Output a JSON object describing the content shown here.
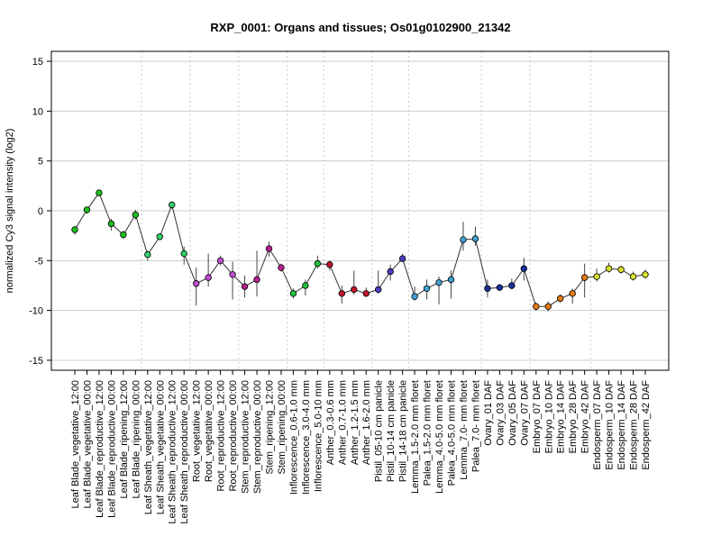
{
  "chart_data": {
    "type": "line",
    "title": "RXP_0001: Organs and tissues; Os01g0102900_21342",
    "xlabel": "",
    "ylabel": "normalized Cy3 signal intensity (log2)",
    "ylim": [
      -16,
      16
    ],
    "yticks": [
      -15,
      -10,
      -5,
      0,
      5,
      10,
      15
    ],
    "grid": true,
    "categories": [
      "Leaf Blade_vegetative_12:00",
      "Leaf Blade_vegetative_00:00",
      "Leaf Blade_reproductive_12:00",
      "Leaf Blade_reproductive_00:00",
      "Leaf Blade_ripening_12:00",
      "Leaf Blade_ripening_00:00",
      "Leaf Sheath_vegetative_12:00",
      "Leaf Sheath_vegetative_00:00",
      "Leaf Sheath_reproductive_12:00",
      "Leaf Sheath_reproductive_00:00",
      "Root_vegetative_12:00",
      "Root_vegetative_00:00",
      "Root_reproductive_12:00",
      "Root_reproductive_00:00",
      "Stem_reproductive_12:00",
      "Stem_reproductive_00:00",
      "Stem_ripening_12:00",
      "Stem_ripening_00:00",
      "Inflorescence_0.6-1.0 mm",
      "Inflorescence_3.0-4.0 mm",
      "Inflorescence_5.0-10 mm",
      "Anther_0.3-0.6 mm",
      "Anther_0.7-1.0 mm",
      "Anther_1.2-1.5 mm",
      "Anther_1.6-2.0 mm",
      "Pistil_05-10 cm panicle",
      "Pistil_10-14 cm panicle",
      "Pistil_14-18 cm panicle",
      "Lemma_1.5-2.0 mm floret",
      "Palea_1.5-2.0 mm floret",
      "Lemma_4.0-5.0 mm floret",
      "Palea_4.0-5.0 mm floret",
      "Lemma_7.0- mm floret",
      "Palea_7.0- mm floret",
      "Ovary_01 DAF",
      "Ovary_03 DAF",
      "Ovary_05 DAF",
      "Ovary_07 DAF",
      "Embryo_07 DAF",
      "Embryo_10 DAF",
      "Embryo_14 DAF",
      "Embryo_28 DAF",
      "Embryo_42 DAF",
      "Endosperm_07 DAF",
      "Endosperm_10 DAF",
      "Endosperm_14 DAF",
      "Endosperm_28 DAF",
      "Endosperm_42 DAF"
    ],
    "values": [
      -1.9,
      0.1,
      1.8,
      -1.3,
      -2.4,
      -0.4,
      -4.4,
      -2.6,
      0.6,
      -4.3,
      -7.3,
      -6.7,
      -5.0,
      -6.4,
      -7.6,
      -6.9,
      -3.8,
      -5.7,
      -8.3,
      -7.5,
      -5.3,
      -5.4,
      -8.3,
      -7.9,
      -8.3,
      -7.9,
      -6.1,
      -4.8,
      -8.6,
      -7.8,
      -7.2,
      -6.9,
      -2.9,
      -2.8,
      -7.8,
      -7.7,
      -7.5,
      -5.8,
      -9.6,
      -9.6,
      -8.8,
      -8.3,
      -6.7,
      -6.6,
      -5.8,
      -5.9,
      -6.6,
      -6.4
    ],
    "error_low": [
      -2.4,
      -0.3,
      1.5,
      -2.0,
      -2.8,
      -0.9,
      -5.0,
      -2.9,
      0.2,
      -5.4,
      -9.5,
      -7.6,
      -5.5,
      -8.9,
      -8.7,
      -8.6,
      -4.6,
      -6.1,
      -8.8,
      -8.5,
      -5.8,
      -6.0,
      -9.3,
      -8.4,
      -8.6,
      -8.3,
      -7.0,
      -5.1,
      -9.0,
      -8.9,
      -9.4,
      -8.8,
      -4.0,
      -3.5,
      -8.7,
      -8.0,
      -7.9,
      -7.0,
      -10.0,
      -10.1,
      -9.2,
      -9.3,
      -8.7,
      -7.1,
      -6.2,
      -6.3,
      -7.0,
      -6.8
    ],
    "error_high": [
      -1.5,
      0.4,
      2.1,
      -0.8,
      -2.0,
      0.1,
      -4.0,
      -2.3,
      0.9,
      -3.6,
      -5.7,
      -4.3,
      -4.5,
      -5.1,
      -6.5,
      -4.0,
      -3.1,
      -5.3,
      -7.8,
      -6.9,
      -4.5,
      -5.0,
      -7.5,
      -6.0,
      -7.7,
      -6.0,
      -5.4,
      -4.3,
      -7.6,
      -6.9,
      -6.6,
      -6.0,
      -1.1,
      -1.6,
      -6.9,
      -7.4,
      -6.8,
      -4.7,
      -9.2,
      -9.1,
      -8.4,
      -7.8,
      -5.3,
      -5.8,
      -5.2,
      -5.5,
      -6.1,
      -5.9
    ],
    "point_colors": [
      "#1fbf1f",
      "#1fbf1f",
      "#1fbf1f",
      "#1fbf1f",
      "#1fbf1f",
      "#1fbf1f",
      "#2fcf6a",
      "#2fcf6a",
      "#2fcf6a",
      "#2fcf6a",
      "#c44dd6",
      "#c44dd6",
      "#c44dd6",
      "#c44dd6",
      "#b8208f",
      "#b8208f",
      "#b8208f",
      "#b8208f",
      "#22c23c",
      "#22c23c",
      "#22c23c",
      "#c0162b",
      "#c0162b",
      "#c0162b",
      "#c0162b",
      "#4a3fc0",
      "#4a3fc0",
      "#4a3fc0",
      "#3fa3d4",
      "#3fa3d4",
      "#3fa3d4",
      "#3fa3d4",
      "#3fa3d4",
      "#3fa3d4",
      "#16309c",
      "#16309c",
      "#16309c",
      "#16309c",
      "#e87a12",
      "#e87a12",
      "#e87a12",
      "#e87a12",
      "#e87a12",
      "#d9e02a",
      "#d9e02a",
      "#d9e02a",
      "#d9e02a",
      "#d9e02a"
    ],
    "group_separators_after_index": [
      5,
      9,
      13,
      17,
      20,
      24,
      27,
      33,
      37,
      42
    ],
    "line_color": "#333333",
    "grid_color": "#cccccc"
  }
}
